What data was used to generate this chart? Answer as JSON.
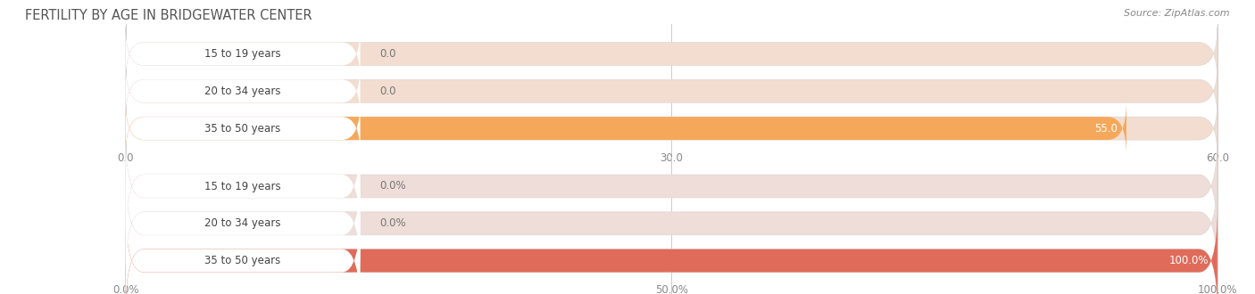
{
  "title": "FERTILITY BY AGE IN BRIDGEWATER CENTER",
  "source": "Source: ZipAtlas.com",
  "chart1": {
    "categories": [
      "15 to 19 years",
      "20 to 34 years",
      "35 to 50 years"
    ],
    "values": [
      0.0,
      0.0,
      55.0
    ],
    "xlim": [
      0,
      60
    ],
    "xticks": [
      0.0,
      30.0,
      60.0
    ],
    "xtick_labels": [
      "0.0",
      "30.0",
      "60.0"
    ],
    "bar_color_full": "#F5A85A",
    "bar_color_empty": "#F2DDD0",
    "label_bg_color": "#FFFFFF"
  },
  "chart2": {
    "categories": [
      "15 to 19 years",
      "20 to 34 years",
      "35 to 50 years"
    ],
    "values": [
      0.0,
      0.0,
      100.0
    ],
    "xlim": [
      0,
      100
    ],
    "xticks": [
      0.0,
      50.0,
      100.0
    ],
    "xtick_labels": [
      "0.0%",
      "50.0%",
      "100.0%"
    ],
    "bar_color_full": "#E06B5A",
    "bar_color_empty": "#EEDDD8",
    "label_bg_color": "#FFFFFF"
  },
  "bar_height": 0.62,
  "bg_color": "#FFFFFF",
  "label_fontsize": 8.5,
  "tick_fontsize": 8.5,
  "title_fontsize": 10.5,
  "category_fontsize": 8.5,
  "value_label_fontsize": 8.5
}
